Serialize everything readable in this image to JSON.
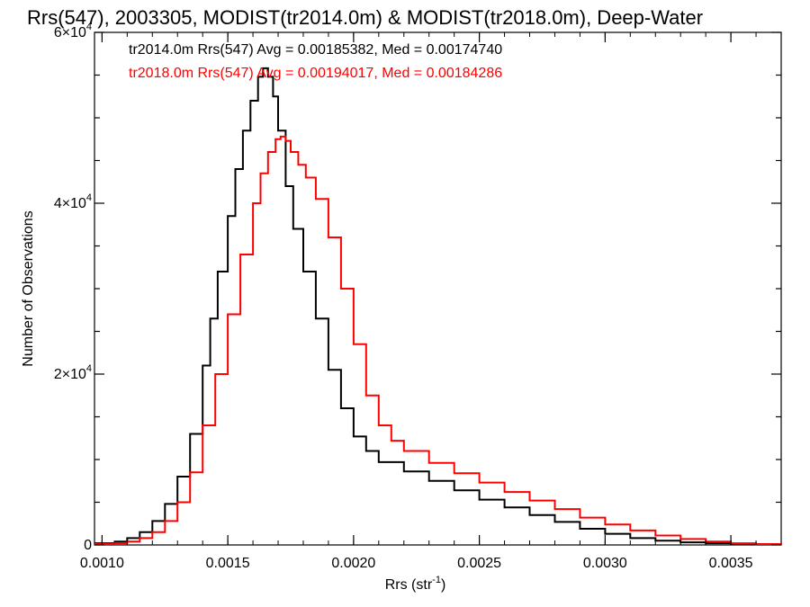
{
  "chart_data": {
    "type": "line",
    "step": true,
    "title": "Rrs(547), 2003305, MODIST(tr2014.0m) & MODIST(tr2018.0m), Deep-Water",
    "xlabel_base": "Rrs (str",
    "xlabel_sup": "-1",
    "xlabel_close": ")",
    "ylabel": "Number of Observations",
    "xlim": [
      0.00097,
      0.0037
    ],
    "ylim": [
      0,
      60000
    ],
    "x_ticks": [
      {
        "value": 0.001,
        "label": "0.0010"
      },
      {
        "value": 0.0015,
        "label": "0.0015"
      },
      {
        "value": 0.002,
        "label": "0.0020"
      },
      {
        "value": 0.0025,
        "label": "0.0025"
      },
      {
        "value": 0.003,
        "label": "0.0030"
      },
      {
        "value": 0.0035,
        "label": "0.0035"
      }
    ],
    "y_ticks": [
      {
        "value": 0,
        "label": "0",
        "sup": ""
      },
      {
        "value": 20000,
        "label": "2×10",
        "sup": "4"
      },
      {
        "value": 40000,
        "label": "4×10",
        "sup": "4"
      },
      {
        "value": 60000,
        "label": "6×10",
        "sup": "4"
      }
    ],
    "legend": [
      {
        "text": "tr2014.0m Rrs(547) Avg = 0.00185382, Med = 0.00174740",
        "color": "#000000"
      },
      {
        "text": "tr2018.0m Rrs(547) Avg = 0.00194017, Med = 0.00184286",
        "color": "#ff0000"
      }
    ],
    "series": [
      {
        "color": "#000000",
        "x": [
          0.00097,
          0.00105,
          0.0011,
          0.00115,
          0.0012,
          0.00125,
          0.0013,
          0.00135,
          0.0014,
          0.00143,
          0.00146,
          0.0015,
          0.00153,
          0.00156,
          0.00159,
          0.00162,
          0.00164,
          0.00166,
          0.00168,
          0.0017,
          0.00173,
          0.00176,
          0.0018,
          0.00185,
          0.0019,
          0.00195,
          0.002,
          0.00205,
          0.0021,
          0.0022,
          0.0023,
          0.0024,
          0.0025,
          0.0026,
          0.0027,
          0.0028,
          0.0029,
          0.003,
          0.0031,
          0.0032,
          0.0033,
          0.0034,
          0.0035,
          0.0036,
          0.0037
        ],
        "y": [
          200,
          400,
          800,
          1500,
          2800,
          4800,
          8000,
          13000,
          21000,
          26500,
          32000,
          38500,
          44000,
          48500,
          52000,
          54800,
          55800,
          54800,
          52500,
          48500,
          42000,
          37000,
          32000,
          26500,
          20500,
          16000,
          12700,
          11000,
          9700,
          8600,
          7500,
          6400,
          5300,
          4400,
          3500,
          2700,
          1900,
          1300,
          800,
          500,
          300,
          200,
          100,
          50,
          20
        ]
      },
      {
        "color": "#ff0000",
        "x": [
          0.00097,
          0.00105,
          0.0011,
          0.00115,
          0.0012,
          0.00125,
          0.0013,
          0.00135,
          0.0014,
          0.00145,
          0.0015,
          0.00155,
          0.0016,
          0.00163,
          0.00166,
          0.00169,
          0.00171,
          0.00173,
          0.00175,
          0.00178,
          0.00181,
          0.00185,
          0.0019,
          0.00195,
          0.002,
          0.00205,
          0.0021,
          0.00215,
          0.0022,
          0.0023,
          0.0024,
          0.0025,
          0.0026,
          0.0027,
          0.0028,
          0.0029,
          0.003,
          0.0031,
          0.0032,
          0.0033,
          0.0034,
          0.0035,
          0.0036,
          0.0037
        ],
        "y": [
          100,
          200,
          400,
          800,
          1500,
          2800,
          5000,
          8500,
          14000,
          20000,
          27000,
          34000,
          40000,
          43500,
          46000,
          47500,
          47800,
          47300,
          46000,
          44500,
          43000,
          40500,
          36000,
          30000,
          23500,
          17500,
          14000,
          12200,
          11000,
          9600,
          8400,
          7300,
          6200,
          5200,
          4200,
          3200,
          2400,
          1700,
          1100,
          700,
          400,
          200,
          100,
          30
        ]
      }
    ]
  }
}
